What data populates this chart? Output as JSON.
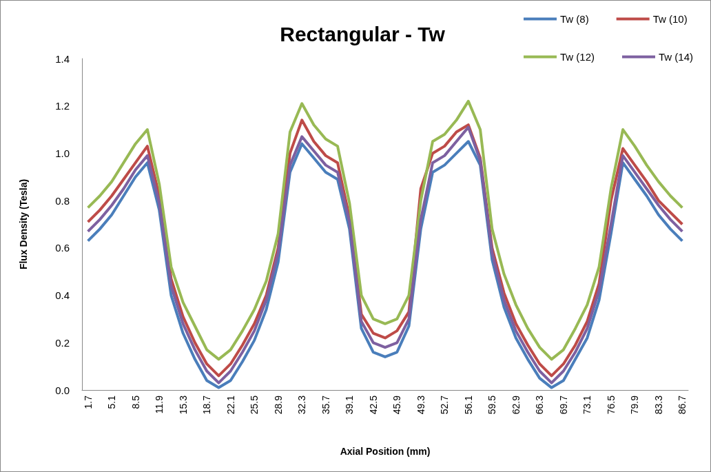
{
  "chart_data": {
    "type": "line",
    "title": "Rectangular - Tw",
    "xlabel": "Axial Position (mm)",
    "ylabel": "Flux Density (Tesla)",
    "categories": [
      "1.7",
      null,
      "5.1",
      null,
      "8.5",
      null,
      "11.9",
      null,
      "15.3",
      null,
      "18.7",
      null,
      "22.1",
      null,
      "25.5",
      null,
      "28.9",
      null,
      "32.3",
      null,
      "35.7",
      null,
      "39.1",
      null,
      "42.5",
      null,
      "45.9",
      null,
      "49.3",
      null,
      "52.7",
      null,
      "56.1",
      null,
      "59.5",
      null,
      "62.9",
      null,
      "66.3",
      null,
      "69.7",
      null,
      "73.1",
      null,
      "76.5",
      null,
      "79.9",
      null,
      "83.3",
      null,
      "86.7"
    ],
    "series": [
      {
        "name": "Tw (8)",
        "color": "#4a7ebb",
        "values": [
          0.63,
          0.68,
          0.74,
          0.82,
          0.9,
          0.96,
          0.76,
          0.4,
          0.24,
          0.13,
          0.04,
          0.01,
          0.04,
          0.12,
          0.21,
          0.34,
          0.54,
          0.92,
          1.04,
          0.98,
          0.92,
          0.89,
          0.68,
          0.26,
          0.16,
          0.14,
          0.16,
          0.27,
          0.68,
          0.92,
          0.95,
          1.0,
          1.05,
          0.95,
          0.55,
          0.35,
          0.22,
          0.13,
          0.05,
          0.01,
          0.04,
          0.13,
          0.22,
          0.38,
          0.66,
          0.96,
          0.89,
          0.82,
          0.74,
          0.68,
          0.63
        ]
      },
      {
        "name": "Tw (10)",
        "color": "#be4b48",
        "values": [
          0.71,
          0.76,
          0.82,
          0.89,
          0.96,
          1.03,
          0.82,
          0.47,
          0.31,
          0.2,
          0.11,
          0.06,
          0.11,
          0.19,
          0.28,
          0.4,
          0.6,
          1.0,
          1.14,
          1.05,
          0.99,
          0.96,
          0.73,
          0.32,
          0.24,
          0.22,
          0.25,
          0.33,
          0.85,
          1.0,
          1.03,
          1.09,
          1.12,
          0.98,
          0.6,
          0.41,
          0.28,
          0.19,
          0.11,
          0.06,
          0.11,
          0.19,
          0.29,
          0.45,
          0.8,
          1.02,
          0.95,
          0.88,
          0.8,
          0.75,
          0.7
        ]
      },
      {
        "name": "Tw (12)",
        "color": "#98b954",
        "values": [
          0.77,
          0.82,
          0.88,
          0.96,
          1.04,
          1.1,
          0.87,
          0.52,
          0.37,
          0.27,
          0.17,
          0.13,
          0.17,
          0.25,
          0.34,
          0.46,
          0.66,
          1.09,
          1.21,
          1.12,
          1.06,
          1.03,
          0.79,
          0.4,
          0.3,
          0.28,
          0.3,
          0.4,
          0.8,
          1.05,
          1.08,
          1.14,
          1.22,
          1.1,
          0.68,
          0.49,
          0.36,
          0.26,
          0.18,
          0.13,
          0.17,
          0.26,
          0.36,
          0.52,
          0.85,
          1.1,
          1.03,
          0.95,
          0.88,
          0.82,
          0.77
        ]
      },
      {
        "name": "Tw (14)",
        "color": "#7d60a0",
        "values": [
          0.67,
          0.72,
          0.78,
          0.85,
          0.93,
          0.99,
          0.79,
          0.44,
          0.28,
          0.17,
          0.08,
          0.03,
          0.08,
          0.16,
          0.25,
          0.38,
          0.58,
          0.95,
          1.07,
          1.01,
          0.95,
          0.92,
          0.71,
          0.29,
          0.2,
          0.18,
          0.2,
          0.3,
          0.72,
          0.96,
          0.99,
          1.05,
          1.11,
          0.97,
          0.58,
          0.38,
          0.25,
          0.16,
          0.08,
          0.03,
          0.08,
          0.16,
          0.26,
          0.42,
          0.7,
          0.99,
          0.92,
          0.85,
          0.78,
          0.72,
          0.67
        ]
      }
    ],
    "ylim": [
      0,
      1.4
    ],
    "yticks": [
      {
        "value": 0,
        "label": "0.0"
      },
      {
        "value": 0.2,
        "label": "0.2"
      },
      {
        "value": 0.4,
        "label": "0.4"
      },
      {
        "value": 0.6,
        "label": "0.6"
      },
      {
        "value": 0.8,
        "label": "0.8"
      },
      {
        "value": 1,
        "label": "1.0"
      },
      {
        "value": 1.2,
        "label": "1.2"
      },
      {
        "value": 1.4,
        "label": "1.4"
      }
    ],
    "grid": false,
    "legend": "top right",
    "marker": "none",
    "line_style": "solid"
  }
}
